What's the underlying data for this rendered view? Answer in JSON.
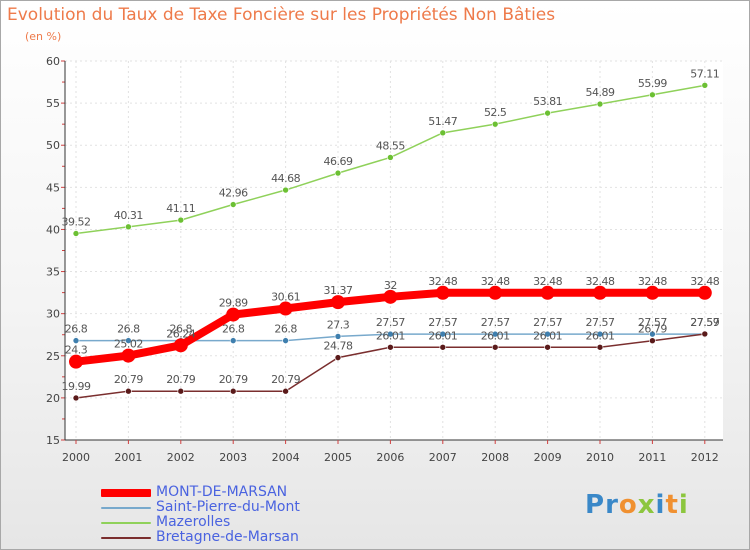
{
  "header": {
    "title": "Evolution du Taux de Taxe Foncière sur les Propriétés Non Bâties",
    "unit": "(en %)"
  },
  "logo": {
    "text": "Proxiti",
    "letters": [
      {
        "ch": "P",
        "color": "#3a88c8"
      },
      {
        "ch": "r",
        "color": "#3a88c8"
      },
      {
        "ch": "o",
        "color": "#f09030"
      },
      {
        "ch": "x",
        "color": "#8cc63e"
      },
      {
        "ch": "i",
        "color": "#3a88c8"
      },
      {
        "ch": "t",
        "color": "#f09030"
      },
      {
        "ch": "i",
        "color": "#8cc63e"
      }
    ]
  },
  "chart_data": {
    "type": "line",
    "title": "Evolution du Taux de Taxe Foncière sur les Propriétés Non Bâties",
    "ylabel": "(en %)",
    "xlabel": "",
    "x": [
      "2000",
      "2001",
      "2002",
      "2003",
      "2004",
      "2005",
      "2006",
      "2007",
      "2008",
      "2009",
      "2010",
      "2011",
      "2012"
    ],
    "ylim": [
      15,
      60
    ],
    "yticks": [
      15,
      20,
      25,
      30,
      35,
      40,
      45,
      50,
      55,
      60
    ],
    "grid": true,
    "legend_position": "bottom-left",
    "series": [
      {
        "name": "Mazerolles",
        "color": "#8fd15a",
        "marker": "#6cc033",
        "values": [
          39.52,
          40.31,
          41.11,
          42.96,
          44.68,
          46.69,
          48.55,
          51.47,
          52.5,
          53.81,
          54.89,
          55.99,
          57.11
        ],
        "labels": [
          "39.52",
          "40.31",
          "41.11",
          "42.96",
          "44.68",
          "46.69",
          "48.55",
          "51.47",
          "52.5",
          "53.81",
          "54.89",
          "55.99",
          "57.11"
        ]
      },
      {
        "name": "Saint-Pierre-du-Mont",
        "color": "#78a9cc",
        "marker": "#3f7fae",
        "values": [
          26.8,
          26.8,
          26.8,
          26.8,
          26.8,
          27.3,
          27.57,
          27.57,
          27.57,
          27.57,
          27.57,
          27.57,
          27.57
        ],
        "labels": [
          "26.8",
          "26.8",
          "26.8",
          "26.8",
          "26.8",
          "27.3",
          "27.57",
          "27.57",
          "27.57",
          "27.57",
          "27.57",
          "27.57",
          "27.57"
        ]
      },
      {
        "name": "Bretagne-de-Marsan",
        "color": "#7a2e2e",
        "marker": "#5a1a1a",
        "values": [
          19.99,
          20.79,
          20.79,
          20.79,
          20.79,
          24.78,
          26.01,
          26.01,
          26.01,
          26.01,
          26.01,
          26.79,
          27.59
        ],
        "labels": [
          "19.99",
          "20.79",
          "20.79",
          "20.79",
          "20.79",
          "24.78",
          "26.01",
          "26.01",
          "26.01",
          "26.01",
          "26.01",
          "26.79",
          "27.59"
        ]
      },
      {
        "name": "MONT-DE-MARSAN",
        "color": "#ff0000",
        "marker": "#ff0000",
        "values": [
          24.3,
          25.02,
          26.24,
          29.89,
          30.61,
          31.37,
          32,
          32.48,
          32.48,
          32.48,
          32.48,
          32.48,
          32.48
        ],
        "labels": [
          "24.3",
          "25.02",
          "26.24",
          "29.89",
          "30.61",
          "31.37",
          "32",
          "32.48",
          "32.48",
          "32.48",
          "32.48",
          "32.48",
          "32.48"
        ]
      }
    ],
    "legend": [
      {
        "name": "MONT-DE-MARSAN",
        "color": "#ff0000",
        "thick": true
      },
      {
        "name": "Saint-Pierre-du-Mont",
        "color": "#78a9cc",
        "thick": false
      },
      {
        "name": "Mazerolles",
        "color": "#8fd15a",
        "thick": false
      },
      {
        "name": "Bretagne-de-Marsan",
        "color": "#7a2e2e",
        "thick": false
      }
    ]
  }
}
